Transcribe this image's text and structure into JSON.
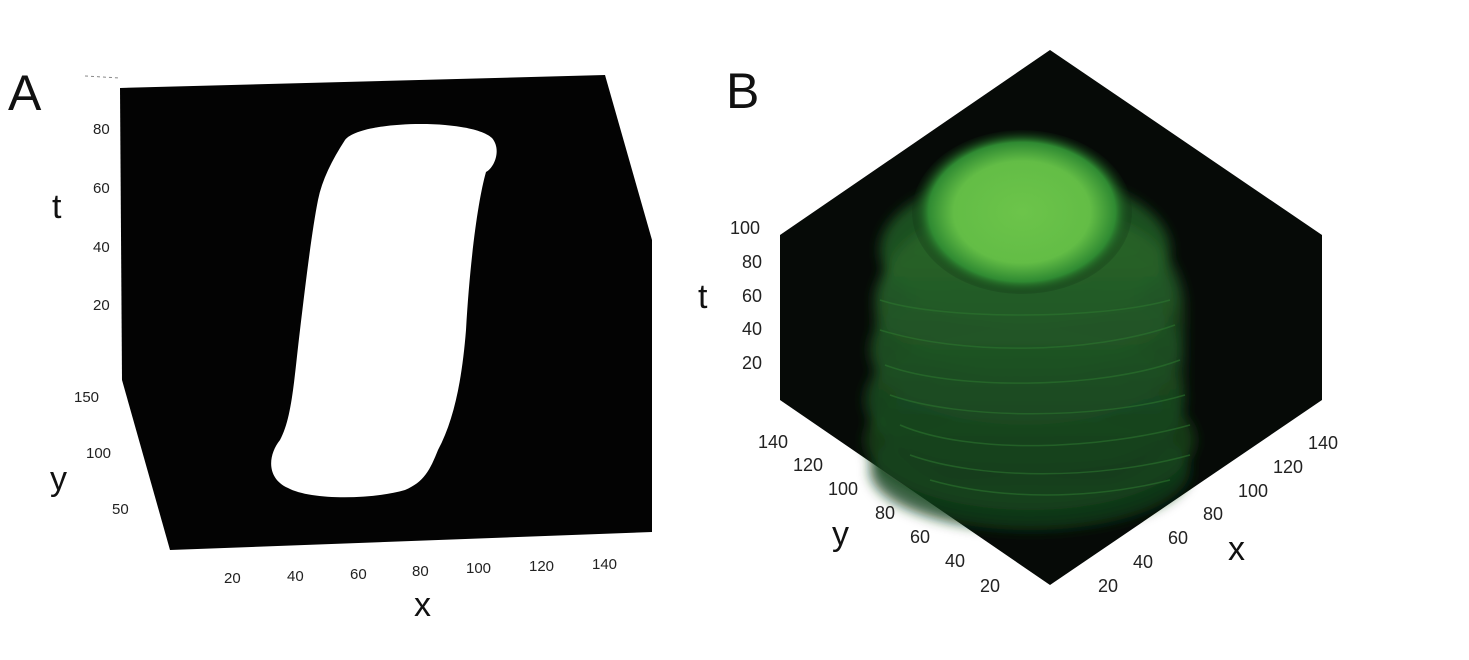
{
  "panels": [
    {
      "letter": "A",
      "axes": {
        "x": "x",
        "y": "y",
        "t": "t"
      },
      "x_ticks": [
        "20",
        "40",
        "60",
        "80",
        "100",
        "120",
        "140"
      ],
      "y_ticks": [
        "50",
        "100",
        "150"
      ],
      "t_ticks": [
        "20",
        "40",
        "60",
        "80"
      ],
      "colors": {
        "background": "#030303",
        "object": "#ffffff"
      }
    },
    {
      "letter": "B",
      "axes": {
        "x": "x",
        "y": "y",
        "t": "t"
      },
      "x_ticks": [
        "20",
        "40",
        "60",
        "80",
        "100",
        "120",
        "140"
      ],
      "y_ticks": [
        "20",
        "40",
        "60",
        "80",
        "100",
        "120",
        "140"
      ],
      "t_ticks": [
        "20",
        "40",
        "60",
        "80",
        "100"
      ],
      "colors": {
        "background": "#060a07",
        "object_top": "#6cc44a",
        "object_body": "#1f5a24"
      }
    }
  ]
}
